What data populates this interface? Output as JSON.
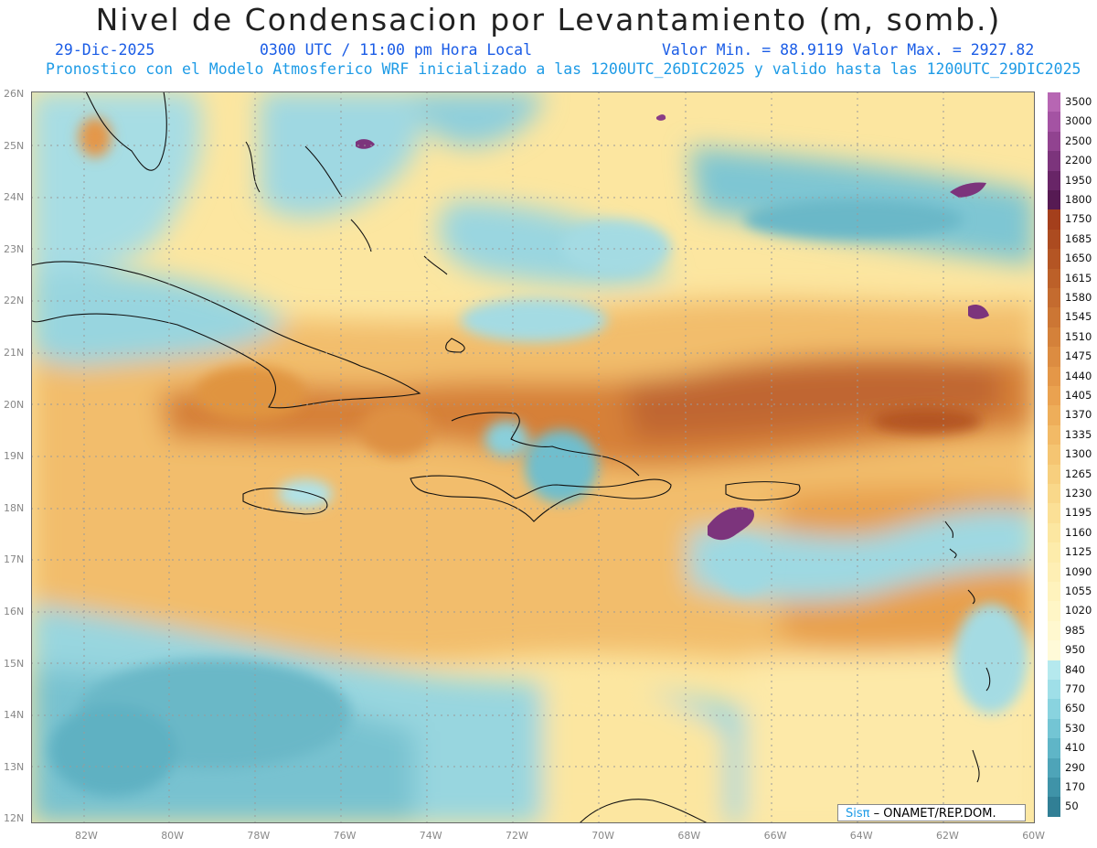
{
  "title": "Nivel de Condensacion por Levantamiento (m, somb.)",
  "header": {
    "date": "29-Dic-2025",
    "time": "0300 UTC / 11:00 pm Hora Local",
    "min_max": "Valor Min. = 88.9119  Valor Max. = 2927.82",
    "subtitle": "Pronostico con el Modelo Atmosferico WRF inicializado a las 1200UTC_26DIC2025 y valido hasta las  1200UTC_29DIC2025"
  },
  "axes": {
    "lat_labels": [
      "26N",
      "25N",
      "24N",
      "23N",
      "22N",
      "21N",
      "20N",
      "19N",
      "18N",
      "17N",
      "16N",
      "15N",
      "14N",
      "13N",
      "12N"
    ],
    "lon_labels": [
      "82W",
      "80W",
      "78W",
      "76W",
      "74W",
      "72W",
      "70W",
      "68W",
      "66W",
      "64W",
      "62W",
      "60W"
    ]
  },
  "colorbar": {
    "levels": [
      "3500",
      "3000",
      "2500",
      "2200",
      "1950",
      "1800",
      "1750",
      "1685",
      "1650",
      "1615",
      "1580",
      "1545",
      "1510",
      "1475",
      "1440",
      "1405",
      "1370",
      "1335",
      "1300",
      "1265",
      "1230",
      "1195",
      "1160",
      "1125",
      "1090",
      "1055",
      "1020",
      "985",
      "950",
      "840",
      "770",
      "650",
      "530",
      "410",
      "290",
      "170",
      "50"
    ],
    "colors": [
      "#b766b3",
      "#a453a3",
      "#914390",
      "#7c347c",
      "#682567",
      "#561a53",
      "#a43f1c",
      "#ac4b20",
      "#b45524",
      "#bc6029",
      "#c46b2f",
      "#cc7634",
      "#d4813a",
      "#dc8c41",
      "#e49748",
      "#eaa250",
      "#eeae5a",
      "#f2ba66",
      "#f5c572",
      "#f7cf7e",
      "#f9d88a",
      "#fbe096",
      "#fce7a1",
      "#fdecab",
      "#feefb4",
      "#fff3bd",
      "#fff6c6",
      "#fff8cf",
      "#fffad8",
      "#b5e9ee",
      "#9fdfe8",
      "#89d3df",
      "#73c5d4",
      "#5fb5c7",
      "#4ea4b8",
      "#3f93a8",
      "#317f95"
    ]
  },
  "credit": {
    "logo": "Sisπ",
    "text": "– ONAMET/REP.DOM."
  }
}
